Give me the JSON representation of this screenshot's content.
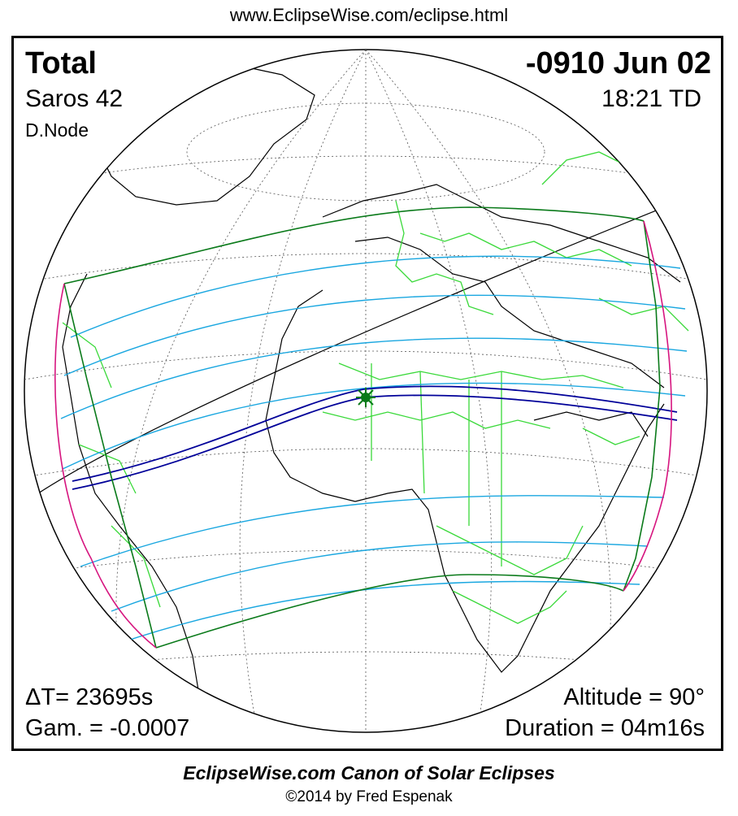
{
  "header": {
    "url": "www.EclipseWise.com/eclipse.html"
  },
  "eclipse": {
    "type": "Total",
    "date": "-0910 Jun 02",
    "saros": "Saros  42",
    "time": "18:21 TD",
    "node": "D.Node",
    "delta_t": "ΔT=  23695s",
    "gamma": "Gam. = -0.0007",
    "altitude": "Altitude = 90°",
    "duration": "Duration = 04m16s"
  },
  "footer": {
    "canon": "EclipseWise.com Canon of Solar Eclipses",
    "copyright": "©2014 by Fred Espenak"
  },
  "colors": {
    "path_of_totality": "#000099",
    "penumbra_limits": "#0a7a1a",
    "partial_lines": "#1aa7e0",
    "rise_set_curve": "#d6157f",
    "borders": "#3ad93a",
    "coastlines": "#000000",
    "greatest_eclipse": "#0a7a1a"
  }
}
